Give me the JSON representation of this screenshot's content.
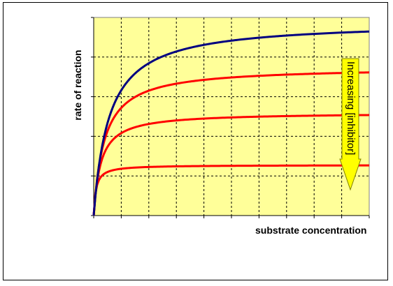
{
  "chart_data": {
    "type": "line",
    "xlabel": "substrate concentration",
    "ylabel": "rate of reaction",
    "annotation": "Increasing [inhibitor]",
    "x_ticks": 10,
    "y_ticks": 5,
    "grid": true,
    "series": [
      {
        "color": "#000080",
        "Vmax": 0.98,
        "Km": 0.55
      },
      {
        "color": "#ff0000",
        "Vmax": 0.75,
        "Km": 0.38
      },
      {
        "color": "#ff0000",
        "Vmax": 0.52,
        "Km": 0.25
      },
      {
        "color": "#ff0000",
        "Vmax": 0.255,
        "Km": 0.08
      }
    ],
    "colors": {
      "plot_bg": "#ffff99",
      "grid": "#000000",
      "arrow": "#ffff00"
    }
  }
}
